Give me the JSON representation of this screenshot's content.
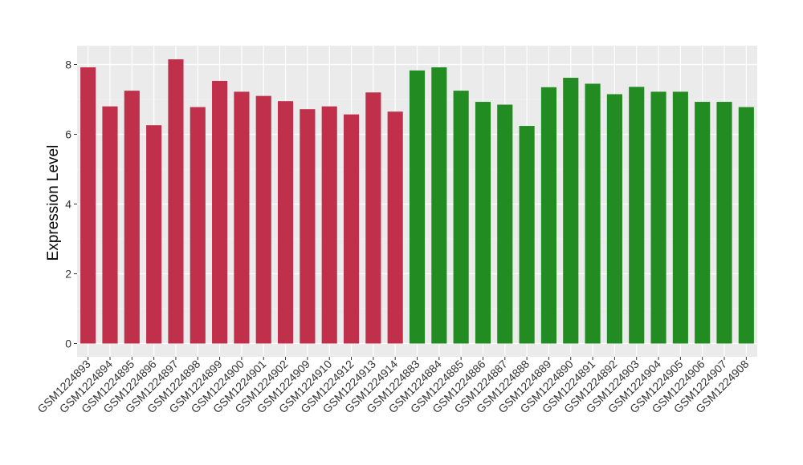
{
  "chart_data": {
    "type": "bar",
    "xlabel": "",
    "ylabel": "Expression Level",
    "ylim": [
      0,
      8.5
    ],
    "yticks": [
      0,
      2,
      4,
      6,
      8
    ],
    "grid": true,
    "legend": "none",
    "categories": [
      "GSM1224893",
      "GSM1224894",
      "GSM1224895",
      "GSM1224896",
      "GSM1224897",
      "GSM1224898",
      "GSM1224899",
      "GSM1224900",
      "GSM1224901",
      "GSM1224902",
      "GSM1224909",
      "GSM1224910",
      "GSM1224912",
      "GSM1224913",
      "GSM1224914",
      "GSM1224883",
      "GSM1224884",
      "GSM1224885",
      "GSM1224886",
      "GSM1224887",
      "GSM1224888",
      "GSM1224889",
      "GSM1224890",
      "GSM1224891",
      "GSM1224892",
      "GSM1224903",
      "GSM1224904",
      "GSM1224905",
      "GSM1224906",
      "GSM1224907",
      "GSM1224908"
    ],
    "values": [
      7.92,
      6.8,
      7.25,
      6.26,
      8.15,
      6.78,
      7.53,
      7.22,
      7.1,
      6.95,
      6.72,
      6.8,
      6.57,
      7.2,
      6.65,
      7.83,
      7.92,
      7.25,
      6.93,
      6.85,
      6.24,
      7.35,
      7.62,
      7.45,
      7.15,
      7.36,
      7.22,
      7.22,
      6.93,
      6.93,
      6.78
    ],
    "groups": [
      0,
      0,
      0,
      0,
      0,
      0,
      0,
      0,
      0,
      0,
      0,
      0,
      0,
      0,
      0,
      1,
      1,
      1,
      1,
      1,
      1,
      1,
      1,
      1,
      1,
      1,
      1,
      1,
      1,
      1,
      1
    ],
    "group_colors": [
      "#c0304a",
      "#228b22"
    ]
  },
  "style": {
    "panel_bg": "#ebebeb",
    "grid_major": "#ffffff",
    "grid_minor": "#f5f5f5"
  }
}
